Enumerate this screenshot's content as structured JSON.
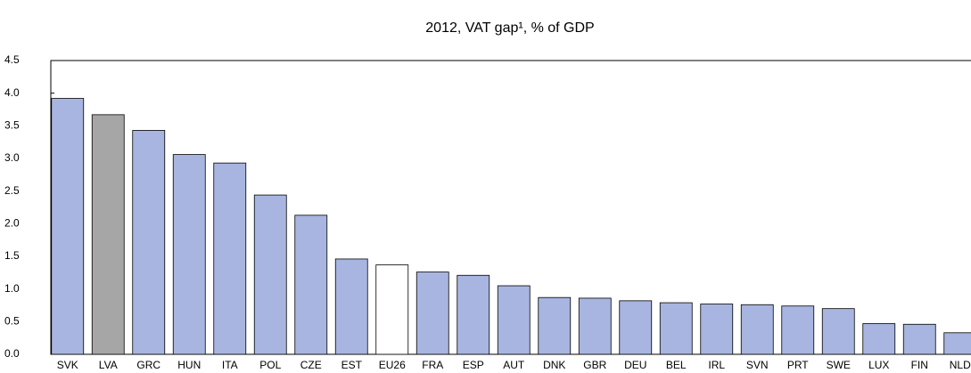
{
  "chart_data": {
    "type": "bar",
    "title": "2012, VAT gap¹, % of GDP",
    "categories": [
      "SVK",
      "LVA",
      "GRC",
      "HUN",
      "ITA",
      "POL",
      "CZE",
      "EST",
      "EU26",
      "FRA",
      "ESP",
      "AUT",
      "DNK",
      "GBR",
      "DEU",
      "BEL",
      "IRL",
      "SVN",
      "PRT",
      "SWE",
      "LUX",
      "FIN",
      "NLD"
    ],
    "values": [
      3.92,
      3.67,
      3.43,
      3.06,
      2.93,
      2.44,
      2.13,
      1.46,
      1.37,
      1.26,
      1.21,
      1.05,
      0.87,
      0.86,
      0.82,
      0.79,
      0.77,
      0.76,
      0.74,
      0.7,
      0.47,
      0.46,
      0.33
    ],
    "colors": [
      "#a8b5e0",
      "#a6a6a6",
      "#a8b5e0",
      "#a8b5e0",
      "#a8b5e0",
      "#a8b5e0",
      "#a8b5e0",
      "#a8b5e0",
      "#ffffff",
      "#a8b5e0",
      "#a8b5e0",
      "#a8b5e0",
      "#a8b5e0",
      "#a8b5e0",
      "#a8b5e0",
      "#a8b5e0",
      "#a8b5e0",
      "#a8b5e0",
      "#a8b5e0",
      "#a8b5e0",
      "#a8b5e0",
      "#a8b5e0",
      "#a8b5e0"
    ],
    "ylim": [
      0,
      4.5
    ],
    "yticks": [
      {
        "value": 0,
        "label": "0.0"
      },
      {
        "value": 0.5,
        "label": "0.5"
      },
      {
        "value": 1,
        "label": "1.0"
      },
      {
        "value": 1.5,
        "label": "1.5"
      },
      {
        "value": 2,
        "label": "2.0"
      },
      {
        "value": 2.5,
        "label": "2.5"
      },
      {
        "value": 3,
        "label": "3.0"
      },
      {
        "value": 3.5,
        "label": "3.5"
      },
      {
        "value": 4,
        "label": "4.0"
      },
      {
        "value": 4.5,
        "label": "4.5"
      }
    ],
    "grid": false
  }
}
